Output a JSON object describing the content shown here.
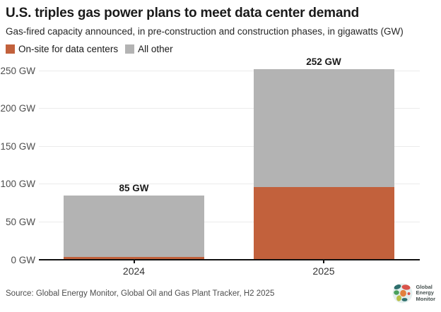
{
  "header": {
    "title": "U.S. triples gas power plans to meet data center demand",
    "subtitle": "Gas-fired capacity announced, in pre-construction and construction phases, in gigawatts (GW)"
  },
  "colors": {
    "onsite": "#c2613c",
    "other": "#b3b3b3",
    "axis": "#111111",
    "grid": "#ebebeb"
  },
  "chart_data": {
    "type": "bar",
    "stacked": true,
    "title": "U.S. triples gas power plans to meet data center demand",
    "subtitle": "Gas-fired capacity announced, in pre-construction and construction phases, in gigawatts (GW)",
    "categories": [
      "2024",
      "2025"
    ],
    "series": [
      {
        "name": "On-site for data centers",
        "color": "#c2613c",
        "values": [
          4,
          96
        ]
      },
      {
        "name": "All other",
        "color": "#b3b3b3",
        "values": [
          81,
          156
        ]
      }
    ],
    "totals": [
      85,
      252
    ],
    "total_labels": [
      "85 GW",
      "252 GW"
    ],
    "yticks": [
      0,
      50,
      100,
      150,
      200,
      250
    ],
    "ytick_labels": [
      "0 GW",
      "50 GW",
      "100 GW",
      "150 GW",
      "200 GW",
      "250 GW"
    ],
    "ylim": [
      0,
      260
    ],
    "unit": "GW",
    "grid": true,
    "legend_position": "top"
  },
  "footer": {
    "source": "Source: Global Energy Monitor, Global Oil and Gas Plant Tracker, H2 2025",
    "logo_text": [
      "Global",
      "Energy",
      "Monitor"
    ]
  }
}
